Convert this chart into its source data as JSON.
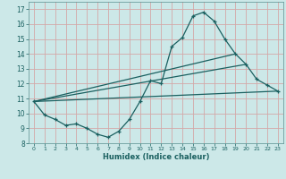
{
  "xlabel": "Humidex (Indice chaleur)",
  "bg_color": "#cce8e8",
  "grid_color": "#d4a8a8",
  "line_color": "#1a6060",
  "xlim": [
    -0.5,
    23.5
  ],
  "ylim": [
    8,
    17.5
  ],
  "xticks": [
    0,
    1,
    2,
    3,
    4,
    5,
    6,
    7,
    8,
    9,
    10,
    11,
    12,
    13,
    14,
    15,
    16,
    17,
    18,
    19,
    20,
    21,
    22,
    23
  ],
  "yticks": [
    8,
    9,
    10,
    11,
    12,
    13,
    14,
    15,
    16,
    17
  ],
  "series1_x": [
    0,
    1,
    2,
    3,
    4,
    5,
    6,
    7,
    8,
    9,
    10,
    11,
    12,
    13,
    14,
    15,
    16,
    17,
    18,
    19,
    20,
    21,
    22,
    23
  ],
  "series1_y": [
    10.8,
    9.9,
    9.6,
    9.2,
    9.3,
    9.0,
    8.6,
    8.4,
    8.8,
    9.6,
    10.8,
    12.2,
    12.0,
    14.5,
    15.1,
    16.55,
    16.8,
    16.2,
    15.0,
    14.0,
    13.3,
    12.3,
    11.9,
    11.5
  ],
  "series2_x": [
    0,
    23
  ],
  "series2_y": [
    10.8,
    11.5
  ],
  "series3_x": [
    0,
    20
  ],
  "series3_y": [
    10.8,
    13.3
  ],
  "series4_x": [
    0,
    19
  ],
  "series4_y": [
    10.8,
    14.0
  ]
}
